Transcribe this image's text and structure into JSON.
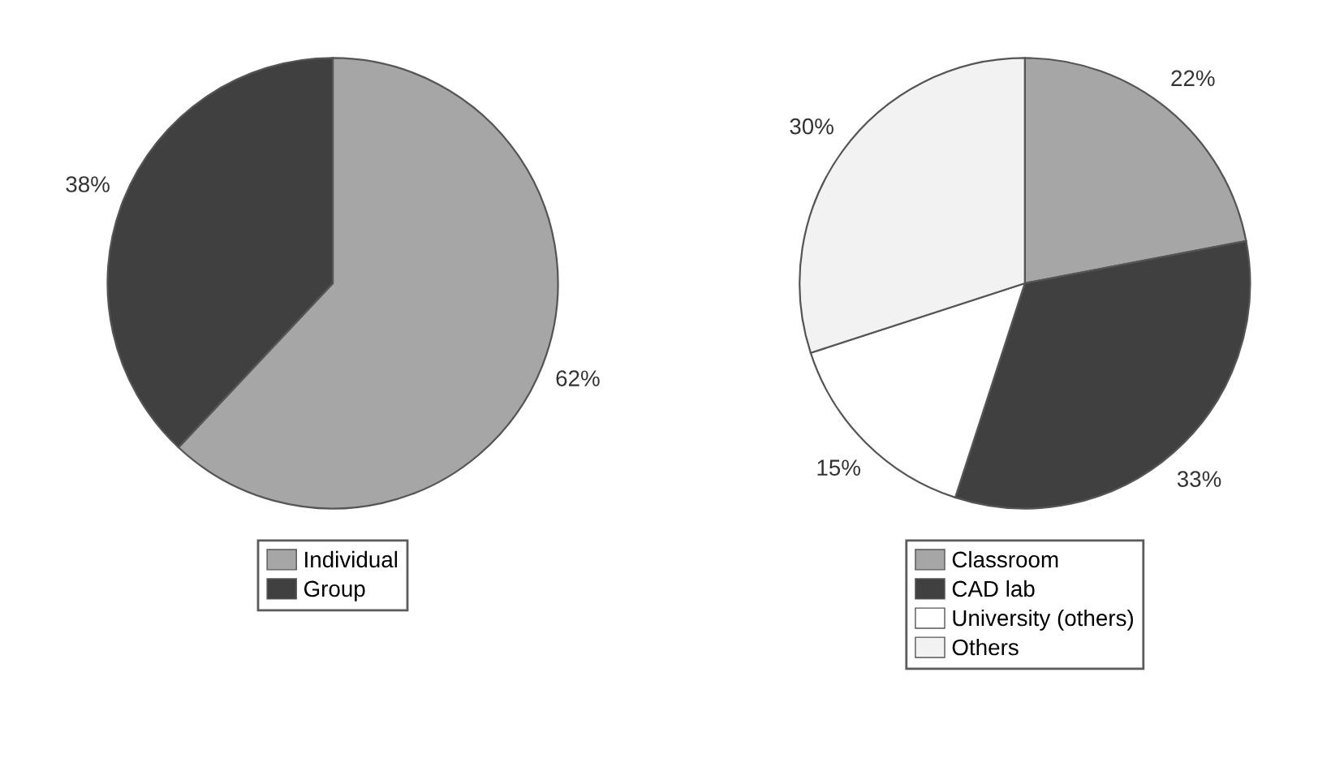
{
  "chart_data": [
    {
      "type": "pie",
      "categories": [
        "Individual",
        "Group"
      ],
      "values": [
        62,
        38
      ],
      "colors": [
        "#a6a6a6",
        "#404040"
      ],
      "value_labels": [
        "62%",
        "38%"
      ],
      "legend": "bottom"
    },
    {
      "type": "pie",
      "categories": [
        "Classroom",
        "CAD lab",
        "University (others)",
        "Others"
      ],
      "values": [
        22,
        33,
        15,
        30
      ],
      "colors": [
        "#a6a6a6",
        "#404040",
        "#ffffff",
        "#f2f2f2"
      ],
      "value_labels": [
        "22%",
        "33%",
        "15%",
        "30%"
      ],
      "legend": "bottom"
    }
  ]
}
